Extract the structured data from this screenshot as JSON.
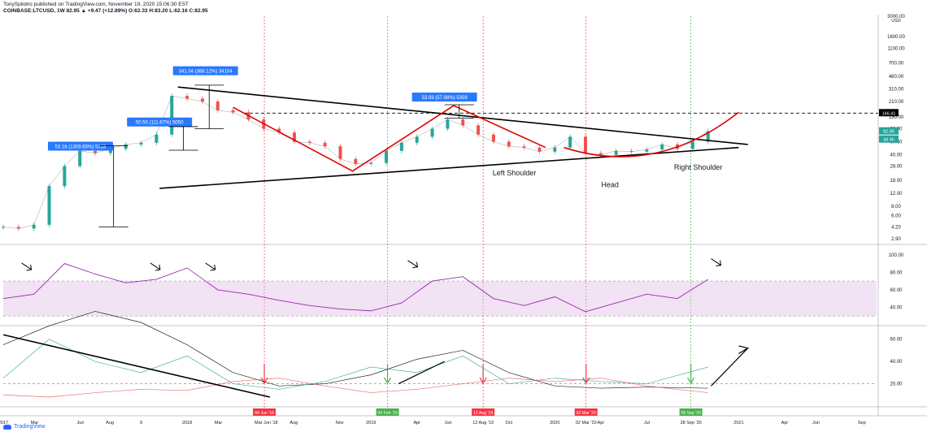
{
  "header": {
    "publisher_line": "TonySpilotro published on TradingView.com, November 19, 2020 15:06:30 EST",
    "symbol_line": "COINBASE:LTCUSD, 1W  82.95  ▲ +9.47 (+12.89%) O:62.33 H:83.20 L:62.16 C:82.95"
  },
  "logo": {
    "text": "TradingView",
    "icon": "tradingview-cloud-icon"
  },
  "colors": {
    "up": "#26a69a",
    "down": "#ef5350",
    "rsi": "#9c27b0",
    "rsi_band": "#e1bee7",
    "shape": "#000000",
    "arc": "#e00000",
    "callout": "#2979ff",
    "price_tag": "#26a69a",
    "marker_red": "#f23645",
    "marker_green": "#4caf50"
  },
  "chart_data": [
    {
      "type": "line",
      "title": "",
      "scale": "log",
      "ylim": [
        2.5,
        3000
      ],
      "ticks_y": [
        "3000.00",
        "1600.00",
        "1100.00",
        "700.00",
        "460.00",
        "310.00",
        "210.00",
        "130.00",
        "90.00",
        "60.00",
        "40.00",
        "28.00",
        "18.00",
        "12.00",
        "8.00",
        "6.00",
        "4.20",
        "2.90"
      ],
      "ticks_x": [
        "2017",
        "Mar",
        "Jun",
        "Aug",
        "9",
        "2018",
        "Mar",
        "Mar Jun '18",
        "Aug",
        "Nov",
        "2019",
        "Apr",
        "Jun",
        "12 Aug '19",
        "Oct",
        "2020",
        "02 Mar '20",
        "Apr",
        "Jul",
        "28 Sep '20",
        "2021",
        "Apr",
        "Jun",
        "Sep"
      ],
      "unit": "USD",
      "price_labels": {
        "last": "82.95",
        "level": "146.41",
        "countdown": "3d 4h"
      },
      "series": [
        {
          "x": [
            "2017-01",
            "2017-02",
            "2017-03",
            "2017-04",
            "2017-05",
            "2017-06",
            "2017-07",
            "2017-08",
            "2017-09",
            "2017-10",
            "2017-11",
            "2017-12",
            "2018-01",
            "2018-02",
            "2018-03",
            "2018-04",
            "2018-05",
            "2018-06",
            "2018-07",
            "2018-08",
            "2018-09",
            "2018-10",
            "2018-11",
            "2018-12",
            "2019-01",
            "2019-02",
            "2019-03",
            "2019-04",
            "2019-05",
            "2019-06",
            "2019-07",
            "2019-08",
            "2019-09",
            "2019-10",
            "2019-11",
            "2019-12",
            "2020-01",
            "2020-02",
            "2020-03",
            "2020-04",
            "2020-05",
            "2020-06",
            "2020-07",
            "2020-08",
            "2020-09",
            "2020-10",
            "2020-11"
          ],
          "values": [
            4.2,
            4.0,
            4.5,
            15,
            28,
            45,
            42,
            48,
            55,
            58,
            75,
            250,
            230,
            210,
            160,
            150,
            120,
            90,
            80,
            60,
            58,
            52,
            35,
            30,
            31,
            45,
            58,
            70,
            90,
            120,
            100,
            75,
            60,
            52,
            50,
            44,
            50,
            70,
            42,
            40,
            45,
            44,
            47,
            55,
            48,
            60,
            82.95
          ]
        }
      ],
      "annotations": [
        {
          "label": "53.18 (1309.65%) 5318",
          "kind": "measure-callout"
        },
        {
          "label": "50.50 (111.67%) 5050",
          "kind": "measure-callout"
        },
        {
          "label": "341.04 (388.12%) 34104",
          "kind": "measure-callout"
        },
        {
          "label": "53.59 (57.98%) 5359",
          "kind": "measure-callout"
        },
        {
          "label": "Left Shoulder",
          "kind": "pattern-text"
        },
        {
          "label": "Head",
          "kind": "pattern-text"
        },
        {
          "label": "Right Shoulder",
          "kind": "pattern-text"
        }
      ],
      "date_markers": [
        {
          "label": "04 Jun '18",
          "color": "#f23645"
        },
        {
          "label": "04 Feb '19",
          "color": "#4caf50"
        },
        {
          "label": "12 Aug '19",
          "color": "#f23645"
        },
        {
          "label": "02 Mar '20",
          "color": "#f23645"
        },
        {
          "label": "28 Sep '20",
          "color": "#4caf50"
        }
      ]
    },
    {
      "type": "line",
      "title": "",
      "ylim": [
        20,
        110
      ],
      "ticks_y": [
        "100.00",
        "80.00",
        "60.00",
        "40.00"
      ],
      "band": [
        30,
        70
      ],
      "series": [
        {
          "x": [
            "2017-01",
            "2017-03",
            "2017-05",
            "2017-07",
            "2017-09",
            "2017-11",
            "2018-01",
            "2018-03",
            "2018-05",
            "2018-07",
            "2018-09",
            "2018-11",
            "2019-01",
            "2019-03",
            "2019-05",
            "2019-07",
            "2019-09",
            "2019-11",
            "2020-01",
            "2020-03",
            "2020-05",
            "2020-07",
            "2020-09",
            "2020-11"
          ],
          "values": [
            50,
            55,
            90,
            78,
            68,
            72,
            85,
            60,
            55,
            48,
            42,
            38,
            36,
            45,
            70,
            75,
            50,
            42,
            52,
            35,
            45,
            55,
            50,
            72
          ]
        }
      ]
    },
    {
      "type": "line",
      "title": "",
      "ylim": [
        0,
        70
      ],
      "ticks_y": [
        "60.00",
        "40.00",
        "20.00"
      ],
      "reference": 20,
      "series": [
        {
          "x": [
            "2017-01",
            "2017-04",
            "2017-07",
            "2017-10",
            "2018-01",
            "2018-04",
            "2018-07",
            "2018-10",
            "2019-01",
            "2019-04",
            "2019-07",
            "2019-10",
            "2020-01",
            "2020-04",
            "2020-07",
            "2020-11"
          ],
          "values": [
            55,
            72,
            85,
            75,
            55,
            30,
            18,
            20,
            28,
            42,
            50,
            30,
            18,
            16,
            17,
            16
          ]
        },
        {
          "x": [
            "2017-01",
            "2017-04",
            "2017-07",
            "2017-10",
            "2018-01",
            "2018-04",
            "2018-07",
            "2018-10",
            "2019-01",
            "2019-04",
            "2019-07",
            "2019-10",
            "2020-01",
            "2020-04",
            "2020-07",
            "2020-11"
          ],
          "values": [
            25,
            60,
            40,
            30,
            45,
            20,
            15,
            22,
            35,
            30,
            45,
            20,
            25,
            22,
            20,
            35
          ]
        },
        {
          "x": [
            "2017-01",
            "2017-04",
            "2017-07",
            "2017-10",
            "2018-01",
            "2018-04",
            "2018-07",
            "2018-10",
            "2019-01",
            "2019-04",
            "2019-07",
            "2019-10",
            "2020-01",
            "2020-04",
            "2020-07",
            "2020-11"
          ],
          "values": [
            10,
            8,
            12,
            15,
            14,
            22,
            25,
            18,
            12,
            15,
            20,
            25,
            22,
            25,
            18,
            12
          ]
        }
      ]
    }
  ]
}
